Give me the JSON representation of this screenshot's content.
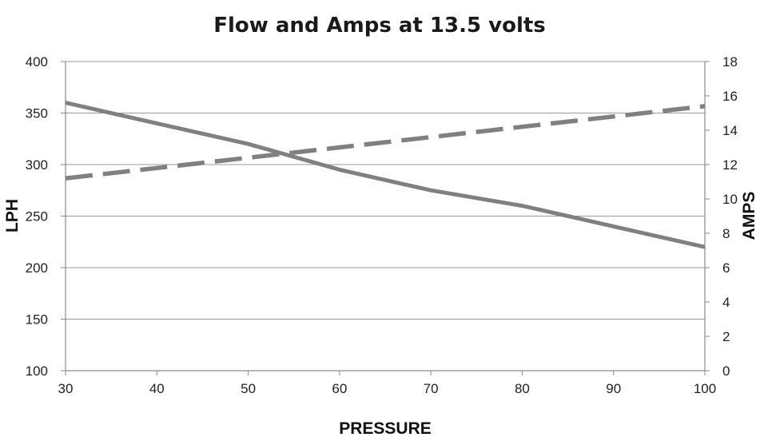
{
  "chart_data": {
    "type": "line",
    "title": "Flow and Amps at 13.5 volts",
    "xlabel": "PRESSURE",
    "ylabel": "LPH",
    "y2label": "AMPS",
    "xlim": [
      30,
      100
    ],
    "ylim": [
      100,
      400
    ],
    "y2lim": [
      0,
      18
    ],
    "x_ticks": [
      30,
      40,
      50,
      60,
      70,
      80,
      90,
      100
    ],
    "y_ticks": [
      100,
      150,
      200,
      250,
      300,
      350,
      400
    ],
    "y2_ticks": [
      0,
      2,
      4,
      6,
      8,
      10,
      12,
      14,
      16,
      18
    ],
    "grid": true,
    "series": [
      {
        "axis": "left",
        "style": "solid",
        "color": "#808080",
        "x": [
          30,
          40,
          50,
          60,
          70,
          80,
          90,
          100
        ],
        "values": [
          360,
          340,
          320,
          295,
          275,
          260,
          240,
          220
        ]
      },
      {
        "axis": "right",
        "style": "dashed",
        "color": "#808080",
        "x": [
          30,
          40,
          50,
          60,
          70,
          80,
          90,
          100
        ],
        "values": [
          11.2,
          11.8,
          12.4,
          13.0,
          13.6,
          14.2,
          14.8,
          15.4
        ]
      }
    ]
  }
}
